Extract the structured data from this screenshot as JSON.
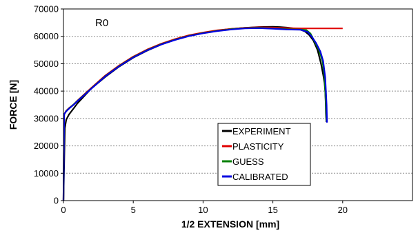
{
  "chart_data": {
    "type": "line",
    "annotation": "R0",
    "xlabel": "1/2 EXTENSION [mm]",
    "ylabel": "FORCE [N]",
    "xlim": [
      0,
      25
    ],
    "ylim": [
      0,
      70000
    ],
    "x_ticks": [
      0,
      5,
      10,
      15,
      20
    ],
    "y_ticks": [
      0,
      10000,
      20000,
      30000,
      40000,
      50000,
      60000,
      70000
    ],
    "grid": "horizontal dashed",
    "legend_position": "bottom-center",
    "series": [
      {
        "name": "EXPERIMENT",
        "color": "#000000",
        "x": [
          0,
          0.1,
          0.2,
          0.4,
          0.7,
          1,
          2,
          3,
          4,
          5,
          6,
          7,
          8,
          9,
          10,
          11,
          12,
          13,
          14,
          15,
          15.5,
          16,
          16.5,
          17,
          17.3,
          17.6,
          17.9,
          18.2,
          18.45,
          18.6,
          18.7,
          18.75,
          18.78,
          18.8,
          18.82,
          18.84
        ],
        "y": [
          0,
          26500,
          29500,
          31500,
          33500,
          35500,
          41000,
          45200,
          49000,
          52200,
          54800,
          57000,
          58900,
          60300,
          61300,
          62100,
          62700,
          63100,
          63400,
          63500,
          63400,
          63200,
          62900,
          62400,
          61800,
          60500,
          58500,
          55000,
          50000,
          46000,
          43000,
          40000,
          36000,
          32000,
          30000,
          28700
        ]
      },
      {
        "name": "PLASTICITY",
        "color": "#e00000",
        "x": [
          0,
          0.05,
          0.2,
          0.4,
          0.7,
          1,
          2,
          3,
          4,
          5,
          6,
          7,
          8,
          9,
          10,
          11,
          12,
          13,
          14,
          15,
          16,
          17,
          18,
          19,
          20
        ],
        "y": [
          0,
          31500,
          32800,
          33800,
          35000,
          36500,
          41200,
          45700,
          49400,
          52600,
          55200,
          57300,
          59000,
          60400,
          61400,
          62200,
          62700,
          63100,
          63300,
          63200,
          63000,
          62900,
          62900,
          62900,
          62900
        ]
      },
      {
        "name": "GUESS",
        "color": "#008000",
        "x": [
          0,
          0.05,
          0.2,
          0.4,
          0.7,
          1,
          2,
          3,
          4,
          5,
          6,
          7,
          8,
          9,
          10,
          11,
          12,
          13,
          14,
          15,
          16,
          17,
          17.4,
          17.7,
          18,
          18.3,
          18.55,
          18.7,
          18.8,
          18.85
        ],
        "y": [
          0,
          31500,
          32700,
          33700,
          35000,
          36400,
          41000,
          45500,
          49200,
          52400,
          55000,
          57100,
          58800,
          60200,
          61200,
          62000,
          62600,
          63000,
          63100,
          62900,
          62600,
          62500,
          62300,
          61000,
          58000,
          55000,
          51000,
          45000,
          35000,
          29000
        ]
      },
      {
        "name": "CALIBRATED",
        "color": "#0000e0",
        "x": [
          0,
          0.05,
          0.2,
          0.4,
          0.7,
          1,
          2,
          3,
          4,
          5,
          6,
          7,
          8,
          9,
          10,
          11,
          12,
          13,
          14,
          15,
          16,
          17,
          17.5,
          17.8,
          18.1,
          18.4,
          18.6,
          18.75,
          18.85,
          18.88
        ],
        "y": [
          0,
          31500,
          32600,
          33600,
          34900,
          36300,
          40900,
          45400,
          49100,
          52300,
          54900,
          57000,
          58700,
          60100,
          61100,
          61900,
          62500,
          62900,
          63000,
          62800,
          62500,
          62400,
          61600,
          59800,
          57500,
          54500,
          51000,
          45000,
          35000,
          28500
        ]
      }
    ]
  }
}
